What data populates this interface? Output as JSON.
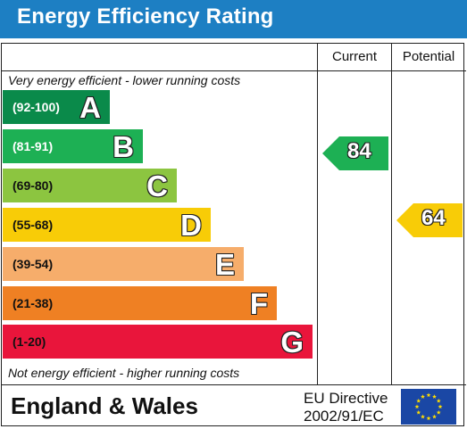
{
  "header": {
    "title": "Energy Efficiency Rating"
  },
  "columns": {
    "current": "Current",
    "potential": "Potential"
  },
  "notes": {
    "top": "Very energy efficient - lower running costs",
    "bottom": "Not energy efficient - higher running costs"
  },
  "bands": [
    {
      "range": "(92-100)",
      "letter": "A",
      "color": "#0a8a4a",
      "text_color": "#ffffff"
    },
    {
      "range": "(81-91)",
      "letter": "B",
      "color": "#1db054",
      "text_color": "#ffffff"
    },
    {
      "range": "(69-80)",
      "letter": "C",
      "color": "#8cc540",
      "text_color": "#111111"
    },
    {
      "range": "(55-68)",
      "letter": "D",
      "color": "#f8cc07",
      "text_color": "#111111"
    },
    {
      "range": "(39-54)",
      "letter": "E",
      "color": "#f6ad6b",
      "text_color": "#111111"
    },
    {
      "range": "(21-38)",
      "letter": "F",
      "color": "#ef8023",
      "text_color": "#111111"
    },
    {
      "range": "(1-20)",
      "letter": "G",
      "color": "#e9153b",
      "text_color": "#111111"
    }
  ],
  "ratings": {
    "current": {
      "value": "84",
      "band": "B",
      "color": "#1db054"
    },
    "potential": {
      "value": "64",
      "band": "D",
      "color": "#f8cc07"
    }
  },
  "footer": {
    "region": "England & Wales",
    "directive_line1": "EU Directive",
    "directive_line2": "2002/91/EC"
  },
  "icons": {
    "eu_flag": "eu-flag-icon"
  }
}
